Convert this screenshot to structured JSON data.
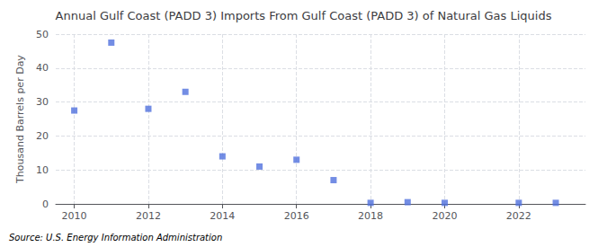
{
  "chart_data": {
    "type": "scatter",
    "title": "Annual Gulf Coast (PADD 3) Imports From Gulf Coast (PADD 3) of Natural Gas Liquids",
    "ylabel": "Thousand Barrels per Day",
    "annotation": "Source: U.S. Energy Information Administration",
    "x": [
      2010,
      2011,
      2012,
      2013,
      2014,
      2015,
      2016,
      2017,
      2018,
      2019,
      2020,
      2022,
      2023
    ],
    "values": [
      27.5,
      47.5,
      28.0,
      33.0,
      14.0,
      11.0,
      13.0,
      7.0,
      0.3,
      0.5,
      0.3,
      0.3,
      0.3
    ],
    "marker": "square",
    "xlim": [
      2009.5,
      2023.8
    ],
    "xticks": [
      2010,
      2012,
      2014,
      2016,
      2018,
      2020,
      2022
    ],
    "ylim": [
      0,
      50
    ],
    "yticks": [
      0,
      10,
      20,
      30,
      40,
      50
    ],
    "grid": true
  }
}
